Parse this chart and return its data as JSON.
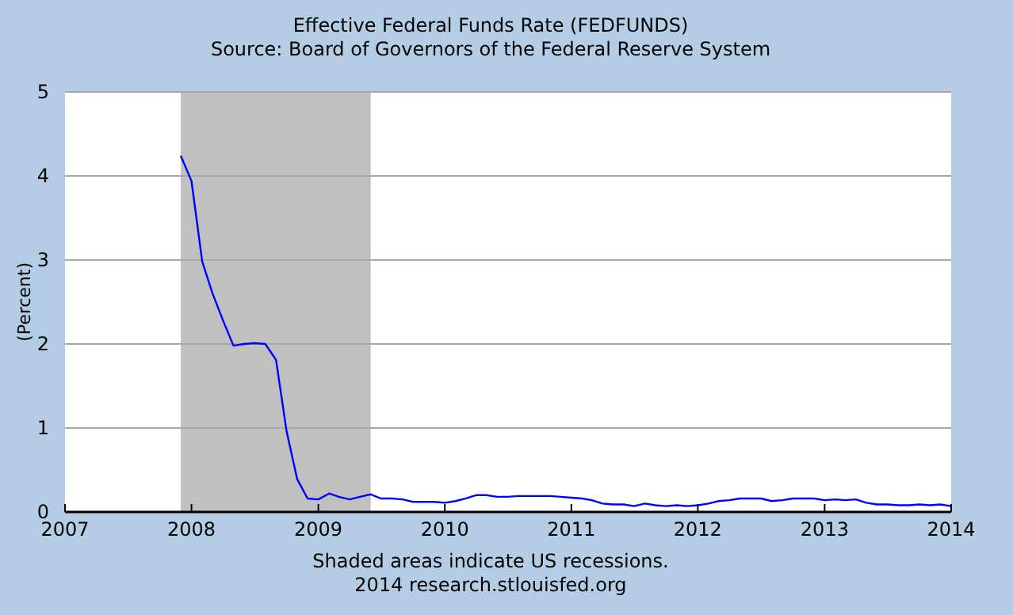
{
  "chart_data": {
    "type": "line",
    "title": "Effective Federal Funds Rate (FEDFUNDS)",
    "subtitle": "Source: Board of Governors of the Federal Reserve System",
    "ylabel": "(Percent)",
    "annotations": [
      "Shaded areas indicate US recessions.",
      "2014 research.stlouisfed.org"
    ],
    "x": [
      "2007-12",
      "2008-01",
      "2008-02",
      "2008-03",
      "2008-04",
      "2008-05",
      "2008-06",
      "2008-07",
      "2008-08",
      "2008-09",
      "2008-10",
      "2008-11",
      "2008-12",
      "2009-01",
      "2009-02",
      "2009-03",
      "2009-04",
      "2009-05",
      "2009-06",
      "2009-07",
      "2009-08",
      "2009-09",
      "2009-10",
      "2009-11",
      "2009-12",
      "2010-01",
      "2010-02",
      "2010-03",
      "2010-04",
      "2010-05",
      "2010-06",
      "2010-07",
      "2010-08",
      "2010-09",
      "2010-10",
      "2010-11",
      "2010-12",
      "2011-01",
      "2011-02",
      "2011-03",
      "2011-04",
      "2011-05",
      "2011-06",
      "2011-07",
      "2011-08",
      "2011-09",
      "2011-10",
      "2011-11",
      "2011-12",
      "2012-01",
      "2012-02",
      "2012-03",
      "2012-04",
      "2012-05",
      "2012-06",
      "2012-07",
      "2012-08",
      "2012-09",
      "2012-10",
      "2012-11",
      "2012-12",
      "2013-01",
      "2013-02",
      "2013-03",
      "2013-04",
      "2013-05",
      "2013-06",
      "2013-07",
      "2013-08",
      "2013-09",
      "2013-10",
      "2013-11",
      "2013-12",
      "2014-01"
    ],
    "series": [
      {
        "color": "#0000ff",
        "values": [
          4.24,
          3.94,
          2.98,
          2.61,
          2.28,
          1.98,
          2.0,
          2.01,
          2.0,
          1.81,
          0.97,
          0.39,
          0.16,
          0.15,
          0.22,
          0.18,
          0.15,
          0.18,
          0.21,
          0.16,
          0.16,
          0.15,
          0.12,
          0.12,
          0.12,
          0.11,
          0.13,
          0.16,
          0.2,
          0.2,
          0.18,
          0.18,
          0.19,
          0.19,
          0.19,
          0.19,
          0.18,
          0.17,
          0.16,
          0.14,
          0.1,
          0.09,
          0.09,
          0.07,
          0.1,
          0.08,
          0.07,
          0.08,
          0.07,
          0.08,
          0.1,
          0.13,
          0.14,
          0.16,
          0.16,
          0.16,
          0.13,
          0.14,
          0.16,
          0.16,
          0.16,
          0.14,
          0.15,
          0.14,
          0.15,
          0.11,
          0.09,
          0.09,
          0.08,
          0.08,
          0.09,
          0.08,
          0.09,
          0.07
        ]
      }
    ],
    "xlim": [
      "2007",
      "2014"
    ],
    "xticks": [
      "2007",
      "2008",
      "2009",
      "2010",
      "2011",
      "2012",
      "2013",
      "2014"
    ],
    "ylim": [
      0,
      5
    ],
    "yticks": [
      0,
      1,
      2,
      3,
      4,
      5
    ],
    "grid": "y",
    "bands": [
      {
        "axis": "x",
        "from": "2007-12",
        "to": "2009-06",
        "color": "#c0c0c0"
      }
    ]
  }
}
